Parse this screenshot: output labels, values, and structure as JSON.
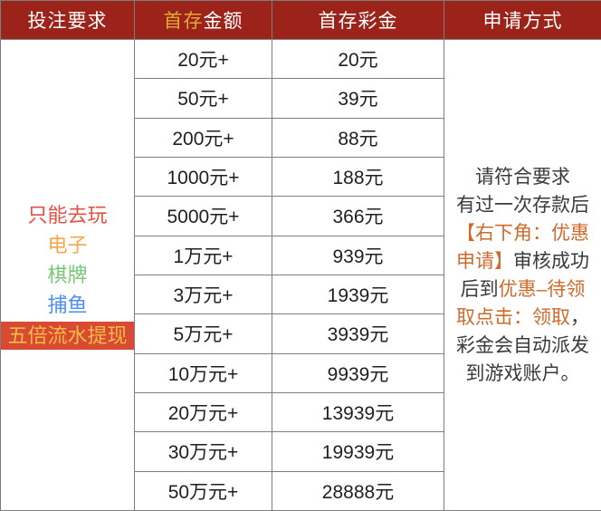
{
  "colors": {
    "header_bg": "#9b231a",
    "header_text": "#ffffff",
    "header_gold": "#e3aa36",
    "grid_border": "#7e7e7e",
    "cell_text": "#1f1f1f",
    "accent_orange": "#cf6a2b",
    "body_dark": "#3a3a3a",
    "req_red": "#e35045",
    "req_orange": "#f6a54c",
    "req_green": "#76c776",
    "req_blue": "#4d8df6",
    "highlight_bg": "#d94a33",
    "highlight_text": "#f2bc45"
  },
  "table": {
    "headers": {
      "requirements": "投注要求",
      "amount_prefix": "首存",
      "amount_suffix": "金额",
      "bonus": "首存彩金",
      "method": "申请方式"
    },
    "requirements_lines": [
      {
        "text": "只能去玩",
        "style": "red"
      },
      {
        "text": "电子",
        "style": "orange"
      },
      {
        "text": "棋牌",
        "style": "green"
      },
      {
        "text": "捕鱼",
        "style": "blue"
      },
      {
        "text": "五倍流水提现",
        "style": "highlight"
      }
    ],
    "rows": [
      {
        "amount": "20元+",
        "bonus": "20元"
      },
      {
        "amount": "50元+",
        "bonus": "39元"
      },
      {
        "amount": "200元+",
        "bonus": "88元"
      },
      {
        "amount": "1000元+",
        "bonus": "188元"
      },
      {
        "amount": "5000元+",
        "bonus": "366元"
      },
      {
        "amount": "1万元+",
        "bonus": "939元"
      },
      {
        "amount": "3万元+",
        "bonus": "1939元"
      },
      {
        "amount": "5万元+",
        "bonus": "3939元"
      },
      {
        "amount": "10万元+",
        "bonus": "9939元"
      },
      {
        "amount": "20万元+",
        "bonus": "13939元"
      },
      {
        "amount": "30万元+",
        "bonus": "19939元"
      },
      {
        "amount": "50万元+",
        "bonus": "28888元"
      }
    ],
    "method_lines": [
      [
        {
          "text": "请符合要求",
          "style": "dark"
        }
      ],
      [
        {
          "text": "有过一次存款后",
          "style": "dark"
        }
      ],
      [
        {
          "text": "【右下角：优惠",
          "style": "accent"
        }
      ],
      [
        {
          "text": "申请】",
          "style": "accent"
        },
        {
          "text": "审核成功",
          "style": "dark"
        }
      ],
      [
        {
          "text": "后到",
          "style": "dark"
        },
        {
          "text": "优惠–待领",
          "style": "accent"
        }
      ],
      [
        {
          "text": "取点击：领取",
          "style": "accent"
        },
        {
          "text": "，",
          "style": "dark"
        }
      ],
      [
        {
          "text": "彩金会自动派发",
          "style": "dark"
        }
      ],
      [
        {
          "text": "到游戏账户。",
          "style": "dark"
        }
      ]
    ]
  }
}
